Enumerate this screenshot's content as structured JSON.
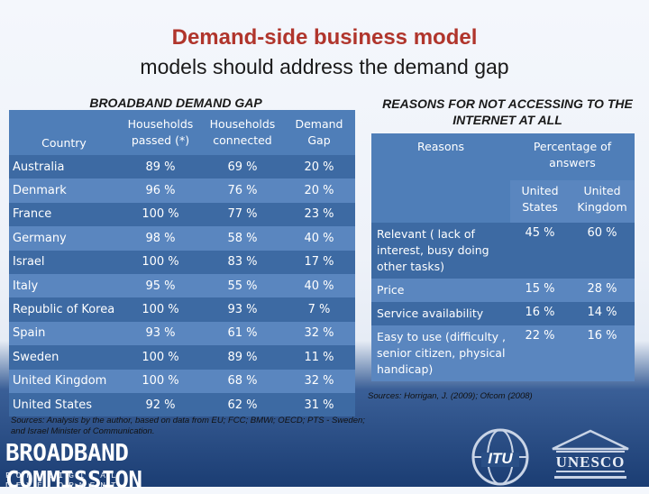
{
  "title": {
    "line1": "Demand-side business model",
    "line2": "models should address the demand gap"
  },
  "left": {
    "heading": "BROADBAND DEMAND GAP",
    "columns": [
      "Country",
      "Households passed (*)",
      "Households connected",
      "Demand Gap"
    ],
    "rows": [
      [
        "Australia",
        "89 %",
        "69 %",
        "20 %"
      ],
      [
        "Denmark",
        "96 %",
        "76 %",
        "20 %"
      ],
      [
        "France",
        "100 %",
        "77 %",
        "23 %"
      ],
      [
        "Germany",
        "98 %",
        "58 %",
        "40 %"
      ],
      [
        "Israel",
        "100 %",
        "83 %",
        "17 %"
      ],
      [
        "Italy",
        "95 %",
        "55 %",
        "40 %"
      ],
      [
        "Republic of Korea",
        "100 %",
        "93 %",
        "7 %"
      ],
      [
        "Spain",
        "93 %",
        "61 %",
        "32 %"
      ],
      [
        "Sweden",
        "100 %",
        "89 %",
        "11 %"
      ],
      [
        "United Kingdom",
        "100 %",
        "68 %",
        "32 %"
      ],
      [
        "United States",
        "92 %",
        "62 %",
        "31 %"
      ]
    ],
    "source": "Sources: Analysis by the author, based on data from EU; FCC; BMWi; OECD; PTS - Sweden; and Israel Minister of Communication."
  },
  "right": {
    "heading": "REASONS FOR NOT ACCESSING TO THE INTERNET AT ALL",
    "col_reasons": "Reasons",
    "col_percentage": "Percentage of answers",
    "sub_us": "United States",
    "sub_uk": "United Kingdom",
    "rows": [
      [
        "Relevant ( lack of interest, busy doing other tasks)",
        "45 %",
        "60 %"
      ],
      [
        "Price",
        "15 %",
        "28 %"
      ],
      [
        "Service availability",
        "16 %",
        "14 %"
      ],
      [
        "Easy to use (difficulty , senior citizen, physical handicap)",
        "22 %",
        "16 %"
      ]
    ],
    "source": "Sources: Horrigan, J. (2009); Ofcom (2008)"
  },
  "logos": {
    "broadband_commission": "BROADBAND COMMISSION",
    "broadband_tagline": "FOR DIGITAL DEVELOPMENT",
    "itu": "ITU",
    "unesco": "UNESCO"
  },
  "colors": {
    "title_red": "#b0352c",
    "header_blue": "#4f7eb8",
    "row_dark": "#3d6aa3",
    "row_light": "#5a86bf",
    "footer_navy": "#1b3d73"
  }
}
